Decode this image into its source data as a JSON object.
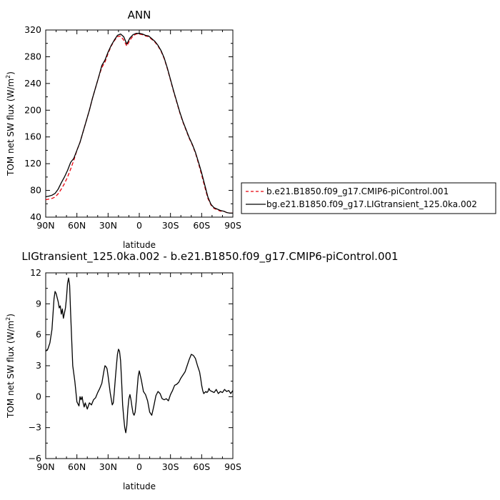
{
  "chart_data": [
    {
      "type": "line",
      "title": "ANN",
      "xlabel": "latitude",
      "ylabel": "TOM net SW flux (W/m²)",
      "ylabel_main": "TOM net SW flux (W/m",
      "ylabel_sup": "2",
      "ylabel_close": ")",
      "xlim": [
        90,
        -90
      ],
      "ylim": [
        40,
        320
      ],
      "x_ticks": [
        90,
        60,
        30,
        0,
        -30,
        -60,
        -90
      ],
      "x_tick_labels": [
        "90N",
        "60N",
        "30N",
        "0",
        "30S",
        "60S",
        "90S"
      ],
      "y_ticks": [
        40,
        80,
        120,
        160,
        200,
        240,
        280,
        320
      ],
      "y_tick_labels": [
        "40",
        "80",
        "120",
        "160",
        "200",
        "240",
        "280",
        "320"
      ],
      "legend_position": "right",
      "series": [
        {
          "name": "b.e21.B1850.f09_g17.CMIP6-piControl.001",
          "color": "#e8000b",
          "dash": "dashed",
          "x": [
            90,
            87,
            84,
            81,
            78,
            75,
            72,
            69,
            66,
            63,
            60,
            57,
            54,
            51,
            48,
            45,
            42,
            39,
            36,
            33,
            30,
            27,
            24,
            21,
            18,
            15,
            12,
            9,
            6,
            3,
            0,
            -3,
            -6,
            -9,
            -12,
            -15,
            -18,
            -21,
            -24,
            -27,
            -30,
            -33,
            -36,
            -39,
            -42,
            -45,
            -48,
            -51,
            -54,
            -57,
            -60,
            -63,
            -66,
            -69,
            -72,
            -75,
            -78,
            -81,
            -84,
            -87,
            -90
          ],
          "y": [
            66,
            67,
            68,
            70,
            75,
            82,
            90,
            100,
            112,
            125,
            140,
            152,
            168,
            184,
            200,
            218,
            234,
            250,
            264,
            272,
            285,
            296,
            304,
            310,
            311,
            305,
            296,
            305,
            311,
            314,
            314,
            313,
            311,
            310,
            306,
            302,
            296,
            288,
            277,
            262,
            245,
            228,
            212,
            196,
            182,
            170,
            158,
            148,
            136,
            120,
            103,
            85,
            68,
            58,
            53,
            51,
            49,
            49,
            47,
            46,
            46
          ]
        },
        {
          "name": "bg.e21.B1850.f09_g17.LIGtransient_125.0ka.002",
          "color": "#000000",
          "dash": "solid",
          "x": [
            90,
            87,
            84,
            81,
            78,
            75,
            72,
            69,
            66,
            63,
            60,
            57,
            54,
            51,
            48,
            45,
            42,
            39,
            36,
            33,
            30,
            27,
            24,
            21,
            18,
            15,
            12,
            9,
            6,
            3,
            0,
            -3,
            -6,
            -9,
            -12,
            -15,
            -18,
            -21,
            -24,
            -27,
            -30,
            -33,
            -36,
            -39,
            -42,
            -45,
            -48,
            -51,
            -54,
            -57,
            -60,
            -63,
            -66,
            -69,
            -72,
            -75,
            -78,
            -81,
            -84,
            -87,
            -90
          ],
          "y": [
            70.4,
            71.4,
            72.8,
            75.5,
            82.0,
            91.5,
            100.0,
            110.0,
            122.0,
            127.9,
            140.0,
            152.0,
            168.0,
            184.0,
            200.0,
            218.0,
            234.0,
            250.0,
            267.0,
            275.0,
            287.0,
            297.0,
            305.0,
            312.0,
            314.0,
            310.0,
            299.0,
            308.0,
            313.0,
            315.0,
            315.0,
            314.0,
            312.0,
            311.0,
            307.0,
            303.0,
            297.0,
            289.0,
            278.0,
            263.0,
            246.0,
            229.0,
            213.0,
            197.0,
            183.0,
            171.0,
            159.0,
            149.0,
            137.0,
            122.0,
            106.0,
            88.0,
            70.0,
            59.0,
            54.0,
            52.0,
            50.0,
            49.0,
            47.0,
            46.0,
            46.0
          ]
        }
      ]
    },
    {
      "type": "line",
      "title": "LIGtransient_125.0ka.002 - b.e21.B1850.f09_g17.CMIP6-piControl.001",
      "xlabel": "latitude",
      "ylabel": "TOM net SW flux (W/m²)",
      "ylabel_main": "TOM net SW flux (W/m",
      "ylabel_sup": "2",
      "ylabel_close": ")",
      "xlim": [
        90,
        -90
      ],
      "ylim": [
        -6,
        12
      ],
      "x_ticks": [
        90,
        60,
        30,
        0,
        -30,
        -60,
        -90
      ],
      "x_tick_labels": [
        "90N",
        "60N",
        "30N",
        "0",
        "30S",
        "60S",
        "90S"
      ],
      "y_ticks": [
        -6,
        -3,
        0,
        3,
        6,
        9,
        12
      ],
      "y_tick_labels": [
        "−6",
        "−3",
        "0",
        "3",
        "6",
        "9",
        "12"
      ],
      "series": [
        {
          "color": "#000000",
          "dash": "solid",
          "x": [
            90,
            88,
            86,
            84,
            83,
            82,
            81,
            80,
            79,
            78,
            77,
            76,
            75,
            74,
            73,
            72,
            71,
            70,
            69,
            68,
            67,
            66,
            64,
            62,
            60,
            58,
            57,
            56,
            55,
            54,
            53,
            52,
            51,
            50,
            48,
            46,
            44,
            42,
            40,
            38,
            36,
            34,
            33,
            32,
            31,
            30,
            29,
            28,
            27,
            26,
            25,
            24,
            23,
            22,
            21,
            20,
            19,
            18,
            17,
            16,
            15,
            14,
            13,
            12,
            11,
            10,
            9,
            8,
            7,
            6,
            5,
            4,
            3,
            2,
            1,
            0,
            -2,
            -4,
            -6,
            -8,
            -10,
            -12,
            -14,
            -16,
            -18,
            -20,
            -22,
            -24,
            -26,
            -28,
            -30,
            -32,
            -34,
            -36,
            -38,
            -40,
            -42,
            -44,
            -46,
            -48,
            -50,
            -52,
            -54,
            -56,
            -58,
            -59,
            -60,
            -61,
            -62,
            -63,
            -64,
            -65,
            -66,
            -67,
            -68,
            -70,
            -72,
            -74,
            -76,
            -78,
            -80,
            -82,
            -84,
            -86,
            -88,
            -90
          ],
          "y": [
            4.4,
            4.6,
            5.2,
            6.5,
            8.0,
            9.5,
            10.2,
            10.0,
            9.6,
            9.2,
            8.6,
            8.8,
            8.0,
            8.5,
            7.6,
            8.1,
            8.6,
            9.6,
            11.0,
            11.5,
            10.8,
            8.0,
            3.0,
            1.5,
            -0.5,
            -0.9,
            0.0,
            -0.3,
            0.0,
            -0.6,
            -1.0,
            -0.6,
            -0.9,
            -1.2,
            -0.6,
            -0.8,
            -0.3,
            -0.1,
            0.4,
            0.8,
            1.3,
            2.5,
            3.0,
            2.9,
            2.7,
            2.0,
            1.2,
            0.4,
            -0.2,
            -0.8,
            -0.6,
            0.5,
            1.8,
            3.0,
            4.1,
            4.6,
            4.4,
            3.5,
            1.5,
            -0.8,
            -2.0,
            -3.0,
            -3.5,
            -2.8,
            -1.2,
            -0.2,
            0.2,
            -0.3,
            -1.0,
            -1.6,
            -1.8,
            -1.5,
            -0.5,
            0.8,
            2.0,
            2.5,
            1.6,
            0.5,
            0.2,
            -0.4,
            -1.5,
            -1.8,
            -0.9,
            0.1,
            0.5,
            0.3,
            -0.2,
            -0.3,
            -0.2,
            -0.4,
            0.2,
            0.6,
            1.1,
            1.2,
            1.4,
            1.8,
            2.1,
            2.4,
            3.0,
            3.6,
            4.1,
            4.0,
            3.7,
            3.0,
            2.4,
            1.8,
            1.1,
            0.6,
            0.3,
            0.4,
            0.5,
            0.4,
            0.5,
            0.8,
            0.6,
            0.5,
            0.4,
            0.7,
            0.3,
            0.5,
            0.4,
            0.7,
            0.5,
            0.6,
            0.3,
            0.6
          ]
        }
      ]
    }
  ]
}
